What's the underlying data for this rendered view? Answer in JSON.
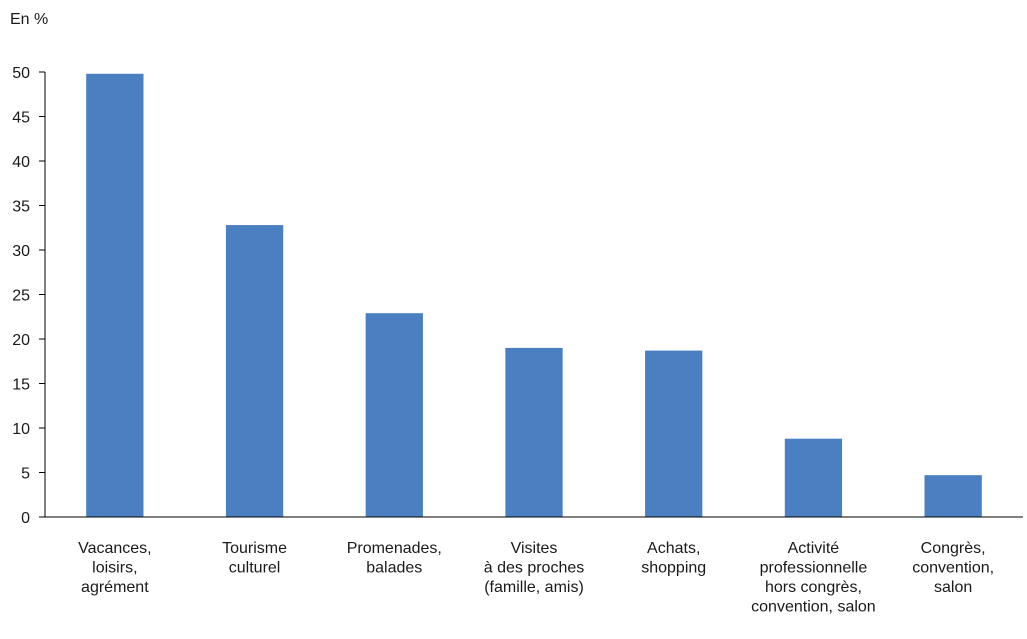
{
  "chart_data": {
    "type": "bar",
    "y_unit_label": "En %",
    "categories": [
      [
        "Vacances,",
        "loisirs,",
        "agrément"
      ],
      [
        "Tourisme",
        "culturel"
      ],
      [
        "Promenades,",
        "balades"
      ],
      [
        "Visites",
        "à des proches",
        "(famille, amis)"
      ],
      [
        "Achats,",
        "shopping"
      ],
      [
        "Activité",
        "professionnelle",
        "hors congrès,",
        "convention, salon"
      ],
      [
        "Congrès,",
        "convention,",
        "salon"
      ]
    ],
    "values": [
      49.8,
      32.8,
      22.9,
      19.0,
      18.7,
      8.8,
      4.7
    ],
    "ylim": [
      0,
      50
    ],
    "yticks": [
      0,
      5,
      10,
      15,
      20,
      25,
      30,
      35,
      40,
      45,
      50
    ],
    "bar_color": "#4a7fc1",
    "grid": false,
    "legend": "none"
  }
}
